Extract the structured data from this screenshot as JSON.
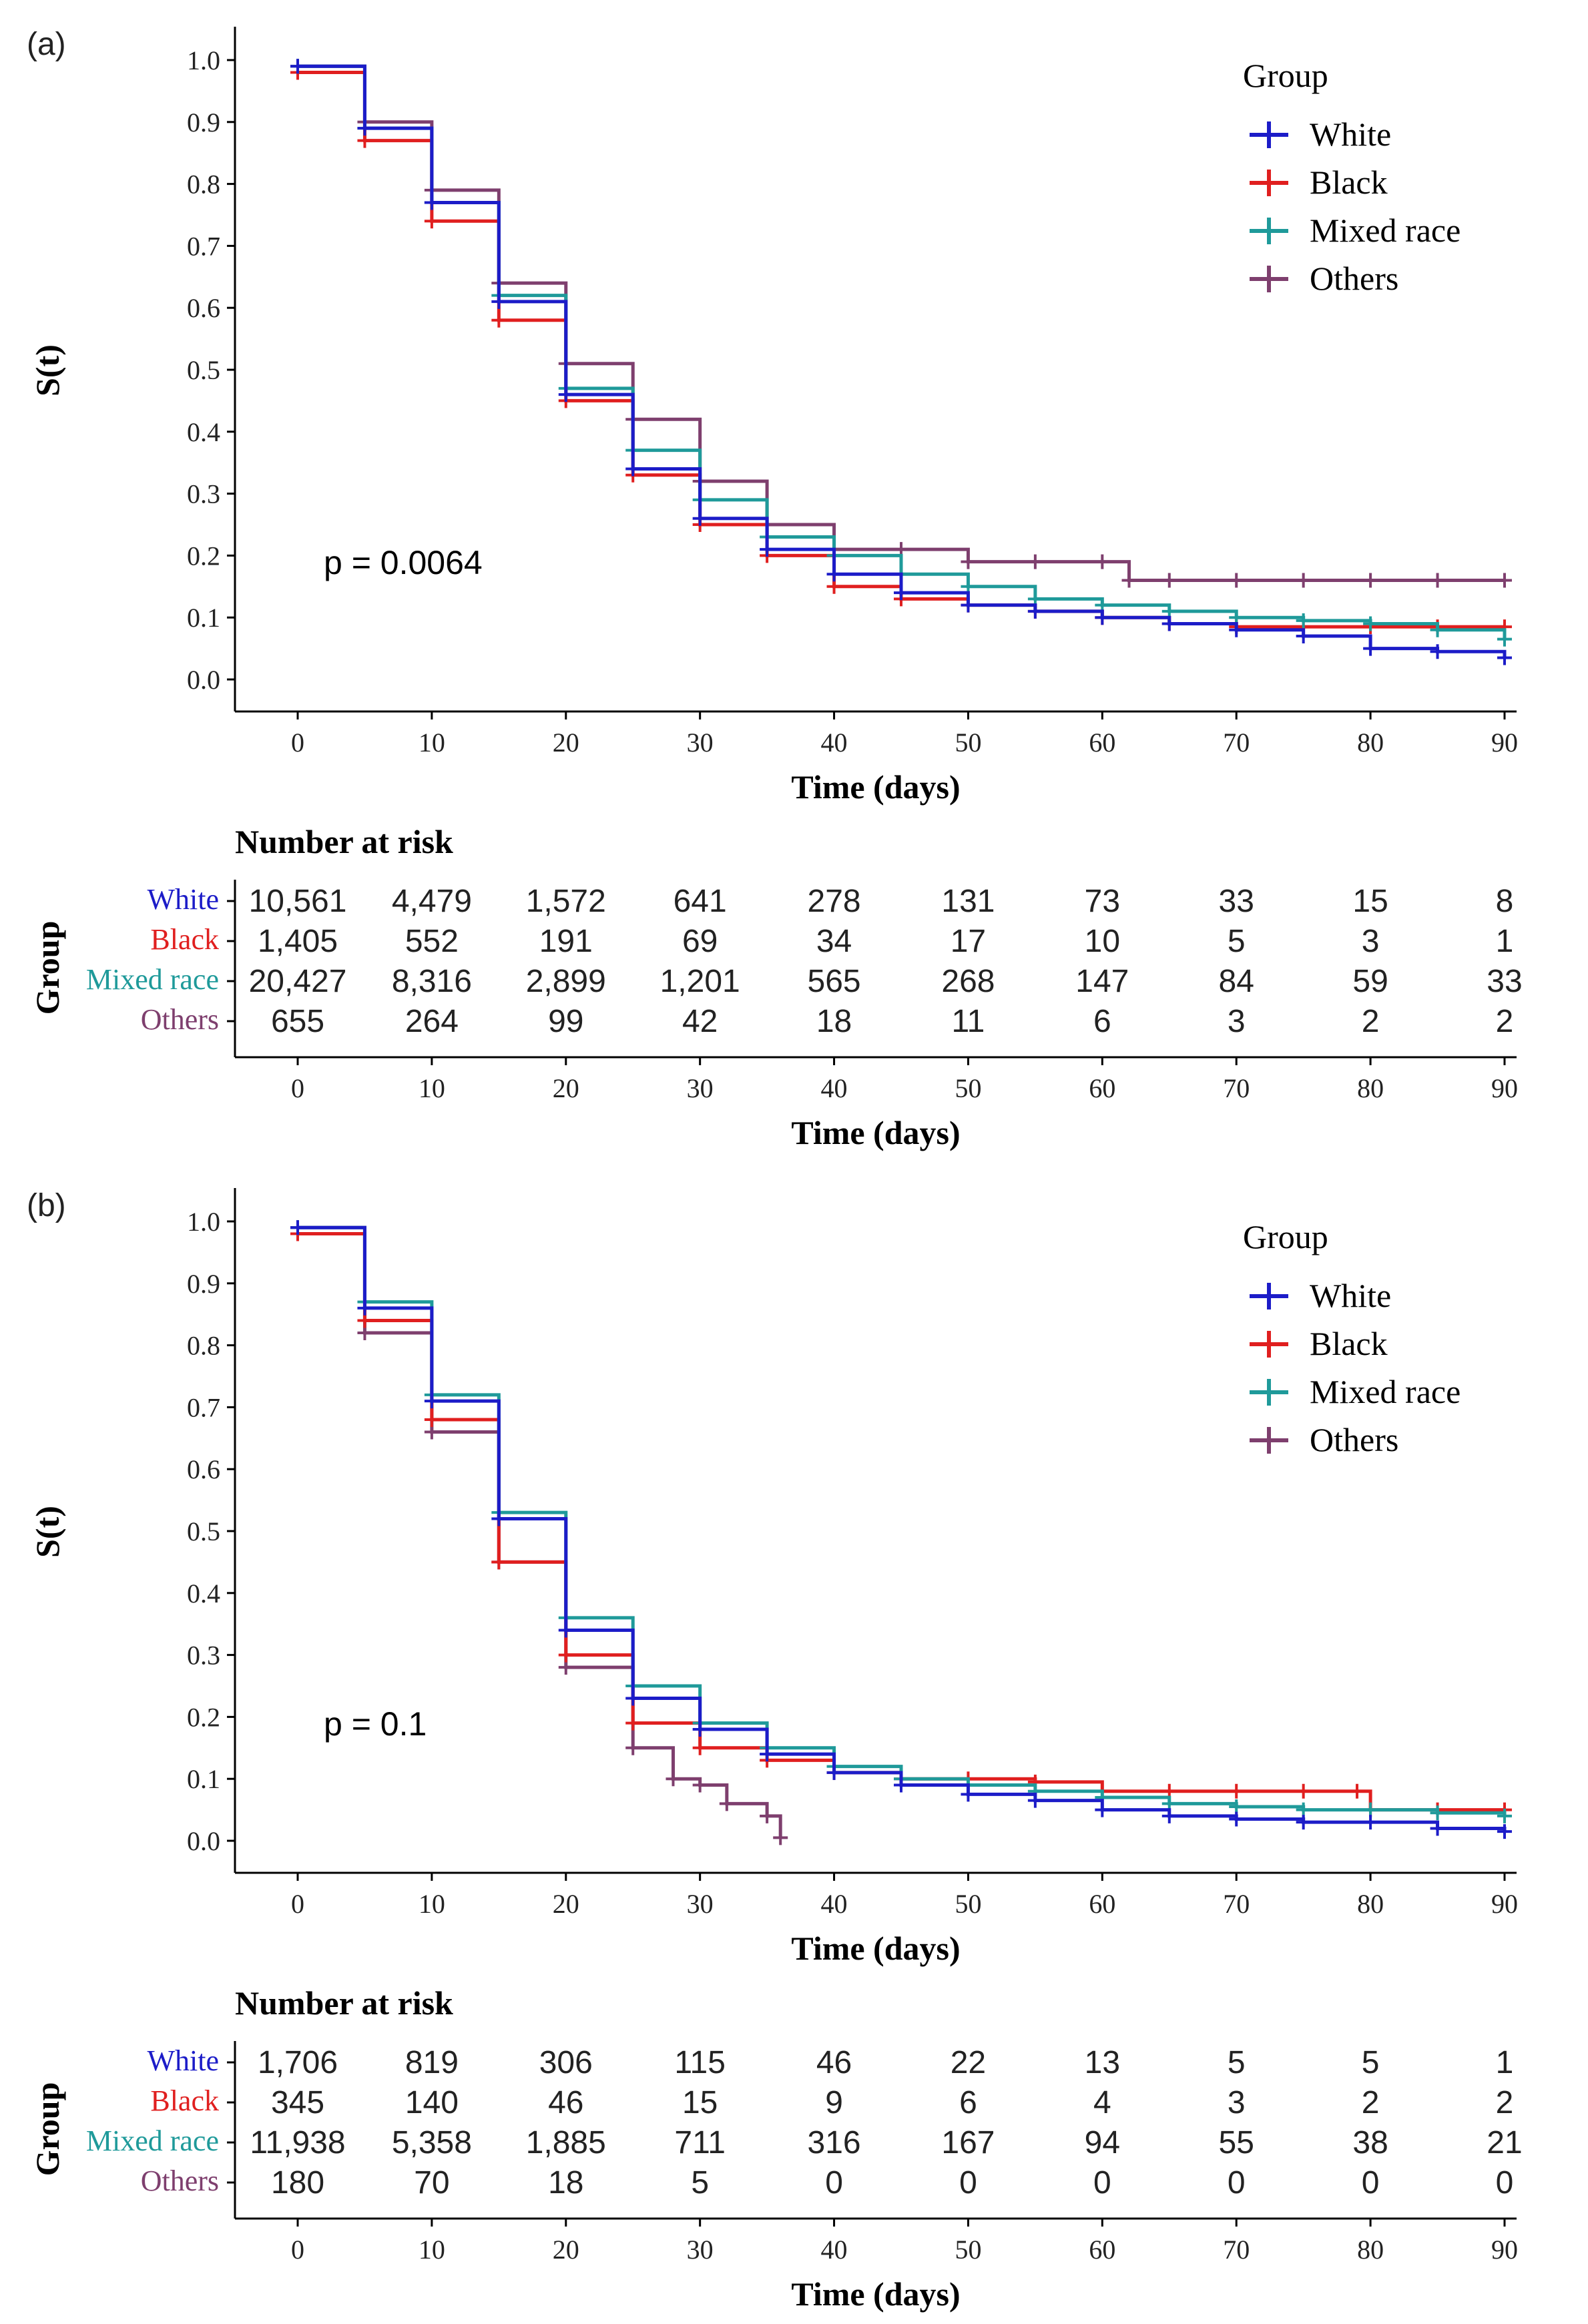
{
  "colors": {
    "White": "#1c1cc8",
    "Black": "#e01f1f",
    "Mixed race": "#1f9a9a",
    "Others": "#7e3f6e",
    "axis": "#000000"
  },
  "chart_data": [
    {
      "type": "line",
      "panel_label": "(a)",
      "title": "",
      "xlabel": "Time (days)",
      "ylabel": "S(t)",
      "xlim": [
        0,
        90
      ],
      "ylim": [
        0,
        1
      ],
      "x_ticks": [
        0,
        10,
        20,
        30,
        40,
        50,
        60,
        70,
        80,
        90
      ],
      "y_ticks": [
        0.0,
        0.1,
        0.2,
        0.3,
        0.4,
        0.5,
        0.6,
        0.7,
        0.8,
        0.9,
        1.0
      ],
      "y_tick_labels": [
        "0.0",
        "0.1",
        "0.2",
        "0.3",
        "0.4",
        "0.5",
        "0.6",
        "0.7",
        "0.8",
        "0.9",
        "1.0"
      ],
      "legend_title": "Group",
      "legend_position": "top-right",
      "annotation": "p = 0.0064",
      "series": [
        {
          "name": "White",
          "x": [
            0,
            5,
            10,
            15,
            20,
            25,
            30,
            35,
            40,
            45,
            50,
            55,
            60,
            65,
            70,
            75,
            80,
            85,
            90
          ],
          "values": [
            0.99,
            0.89,
            0.77,
            0.61,
            0.46,
            0.34,
            0.26,
            0.21,
            0.17,
            0.14,
            0.12,
            0.11,
            0.1,
            0.09,
            0.08,
            0.07,
            0.05,
            0.045,
            0.035
          ]
        },
        {
          "name": "Black",
          "x": [
            0,
            5,
            10,
            15,
            20,
            25,
            30,
            35,
            40,
            45,
            50,
            55,
            60,
            65,
            70,
            75,
            80,
            85,
            90
          ],
          "values": [
            0.98,
            0.87,
            0.74,
            0.58,
            0.45,
            0.33,
            0.25,
            0.2,
            0.15,
            0.13,
            0.12,
            0.11,
            0.1,
            0.09,
            0.085,
            0.085,
            0.085,
            0.085,
            0.085
          ]
        },
        {
          "name": "Mixed race",
          "x": [
            0,
            5,
            10,
            15,
            20,
            25,
            30,
            35,
            40,
            45,
            50,
            55,
            60,
            65,
            70,
            75,
            80,
            85,
            90
          ],
          "values": [
            0.99,
            0.89,
            0.77,
            0.62,
            0.47,
            0.37,
            0.29,
            0.23,
            0.2,
            0.17,
            0.15,
            0.13,
            0.12,
            0.11,
            0.1,
            0.095,
            0.09,
            0.08,
            0.065
          ]
        },
        {
          "name": "Others",
          "x": [
            0,
            5,
            10,
            15,
            20,
            25,
            30,
            35,
            40,
            45,
            50,
            55,
            60,
            62,
            65,
            70,
            75,
            80,
            85,
            90
          ],
          "values": [
            0.99,
            0.9,
            0.79,
            0.64,
            0.51,
            0.42,
            0.32,
            0.25,
            0.21,
            0.21,
            0.19,
            0.19,
            0.19,
            0.16,
            0.16,
            0.16,
            0.16,
            0.16,
            0.16,
            0.16
          ]
        }
      ],
      "risk_table": {
        "title": "Number at risk",
        "ylabel": "Group",
        "xlabel": "Time (days)",
        "time_ticks": [
          0,
          10,
          20,
          30,
          40,
          50,
          60,
          70,
          80,
          90
        ],
        "rows": [
          {
            "group": "White",
            "counts": [
              "10,561",
              "4,479",
              "1,572",
              "641",
              "278",
              "131",
              "73",
              "33",
              "15",
              "8"
            ]
          },
          {
            "group": "Black",
            "counts": [
              "1,405",
              "552",
              "191",
              "69",
              "34",
              "17",
              "10",
              "5",
              "3",
              "1"
            ]
          },
          {
            "group": "Mixed race",
            "counts": [
              "20,427",
              "8,316",
              "2,899",
              "1,201",
              "565",
              "268",
              "147",
              "84",
              "59",
              "33"
            ]
          },
          {
            "group": "Others",
            "counts": [
              "655",
              "264",
              "99",
              "42",
              "18",
              "11",
              "6",
              "3",
              "2",
              "2"
            ]
          }
        ]
      }
    },
    {
      "type": "line",
      "panel_label": "(b)",
      "title": "",
      "xlabel": "Time (days)",
      "ylabel": "S(t)",
      "xlim": [
        0,
        90
      ],
      "ylim": [
        0,
        1
      ],
      "x_ticks": [
        0,
        10,
        20,
        30,
        40,
        50,
        60,
        70,
        80,
        90
      ],
      "y_ticks": [
        0.0,
        0.1,
        0.2,
        0.3,
        0.4,
        0.5,
        0.6,
        0.7,
        0.8,
        0.9,
        1.0
      ],
      "y_tick_labels": [
        "0.0",
        "0.1",
        "0.2",
        "0.3",
        "0.4",
        "0.5",
        "0.6",
        "0.7",
        "0.8",
        "0.9",
        "1.0"
      ],
      "legend_title": "Group",
      "legend_position": "top-right",
      "annotation": "p = 0.1",
      "series": [
        {
          "name": "White",
          "x": [
            0,
            5,
            10,
            15,
            20,
            25,
            30,
            35,
            40,
            45,
            50,
            55,
            60,
            65,
            70,
            75,
            80,
            85,
            90
          ],
          "values": [
            0.99,
            0.86,
            0.71,
            0.52,
            0.34,
            0.23,
            0.18,
            0.14,
            0.11,
            0.09,
            0.075,
            0.065,
            0.05,
            0.04,
            0.035,
            0.03,
            0.03,
            0.02,
            0.015
          ]
        },
        {
          "name": "Black",
          "x": [
            0,
            5,
            10,
            15,
            20,
            25,
            30,
            35,
            40,
            45,
            50,
            55,
            60,
            65,
            70,
            75,
            79,
            80,
            85,
            90
          ],
          "values": [
            0.98,
            0.84,
            0.68,
            0.45,
            0.3,
            0.19,
            0.15,
            0.13,
            0.11,
            0.1,
            0.1,
            0.095,
            0.08,
            0.08,
            0.08,
            0.08,
            0.08,
            0.05,
            0.05,
            0.05
          ]
        },
        {
          "name": "Mixed race",
          "x": [
            0,
            5,
            10,
            15,
            20,
            25,
            30,
            35,
            40,
            45,
            50,
            55,
            60,
            65,
            70,
            75,
            80,
            85,
            90
          ],
          "values": [
            0.99,
            0.87,
            0.72,
            0.53,
            0.36,
            0.25,
            0.19,
            0.15,
            0.12,
            0.1,
            0.09,
            0.08,
            0.07,
            0.06,
            0.055,
            0.05,
            0.05,
            0.045,
            0.04
          ]
        },
        {
          "name": "Others",
          "x": [
            0,
            5,
            10,
            15,
            20,
            25,
            28,
            30,
            32,
            35,
            36
          ],
          "values": [
            0.99,
            0.82,
            0.66,
            0.45,
            0.28,
            0.15,
            0.1,
            0.09,
            0.06,
            0.04,
            0.005
          ]
        }
      ],
      "risk_table": {
        "title": "Number at risk",
        "ylabel": "Group",
        "xlabel": "Time (days)",
        "time_ticks": [
          0,
          10,
          20,
          30,
          40,
          50,
          60,
          70,
          80,
          90
        ],
        "rows": [
          {
            "group": "White",
            "counts": [
              "1,706",
              "819",
              "306",
              "115",
              "46",
              "22",
              "13",
              "5",
              "5",
              "1"
            ]
          },
          {
            "group": "Black",
            "counts": [
              "345",
              "140",
              "46",
              "15",
              "9",
              "6",
              "4",
              "3",
              "2",
              "2"
            ]
          },
          {
            "group": "Mixed race",
            "counts": [
              "11,938",
              "5,358",
              "1,885",
              "711",
              "316",
              "167",
              "94",
              "55",
              "38",
              "21"
            ]
          },
          {
            "group": "Others",
            "counts": [
              "180",
              "70",
              "18",
              "5",
              "0",
              "0",
              "0",
              "0",
              "0",
              "0"
            ]
          }
        ]
      }
    }
  ]
}
